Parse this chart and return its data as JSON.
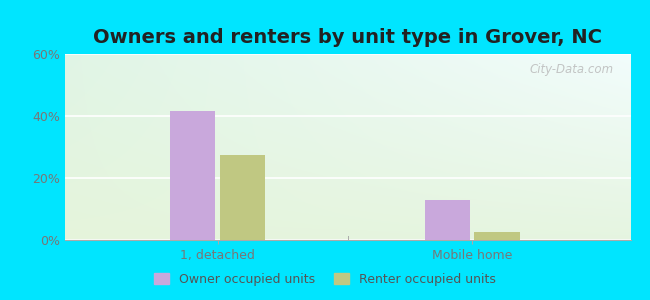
{
  "title": "Owners and renters by unit type in Grover, NC",
  "title_fontsize": 14,
  "categories": [
    "1, detached",
    "Mobile home"
  ],
  "owner_values": [
    41.5,
    13.0
  ],
  "renter_values": [
    27.5,
    2.5
  ],
  "owner_color": "#c9a8dc",
  "renter_color": "#c0c882",
  "bar_width": 0.08,
  "ylim": [
    0,
    60
  ],
  "yticks": [
    0,
    20,
    40,
    60
  ],
  "ytick_labels": [
    "0%",
    "20%",
    "40%",
    "60%"
  ],
  "legend_labels": [
    "Owner occupied units",
    "Renter occupied units"
  ],
  "watermark": "City-Data.com",
  "outer_bg": "#00e5ff",
  "group_positions": [
    0.27,
    0.72
  ],
  "bg_top_left": "#d8ede0",
  "bg_top_right": "#e8f5f0",
  "bg_bottom": "#eaf5e0"
}
